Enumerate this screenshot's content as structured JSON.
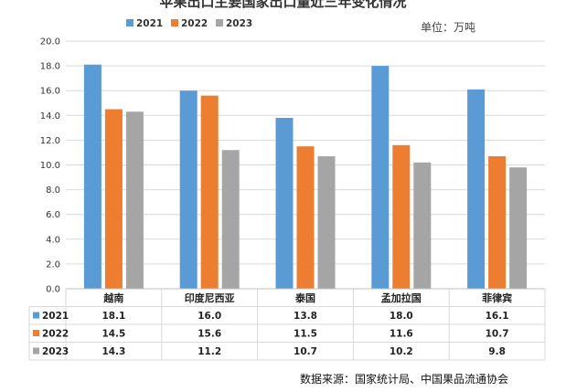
{
  "chart_data": {
    "type": "bar",
    "title": "苹果出口主要国家出口量近三年变化情况",
    "unit": "单位：万吨",
    "source": "数据来源：国家统计局、中国果品流通协会",
    "categories": [
      "越南",
      "印度尼西亚",
      "泰国",
      "孟加拉国",
      "菲律宾"
    ],
    "series": [
      {
        "name": "2021",
        "values": [
          18.1,
          16.0,
          13.8,
          18.0,
          16.1
        ]
      },
      {
        "name": "2022",
        "values": [
          14.5,
          15.6,
          11.5,
          11.6,
          10.7
        ]
      },
      {
        "name": "2023",
        "values": [
          14.3,
          11.2,
          10.7,
          10.2,
          9.8
        ]
      }
    ],
    "ylim": [
      0,
      20
    ],
    "yticks": [
      "0.0",
      "2.0",
      "4.0",
      "6.0",
      "8.0",
      "10.0",
      "12.0",
      "14.0",
      "16.0",
      "18.0",
      "20.0"
    ],
    "grid": true,
    "legend": "top",
    "data_table": true,
    "colors": [
      "#5b9bd5",
      "#ed7d31",
      "#a5a5a5"
    ]
  }
}
